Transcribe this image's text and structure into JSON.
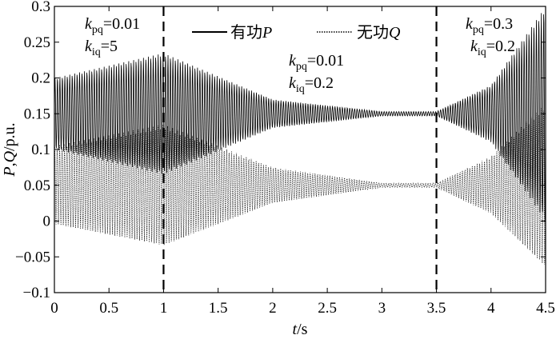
{
  "chart_data": {
    "type": "line",
    "xlabel": "t/s",
    "ylabel": "P,Q/p.u.",
    "xlim": [
      0,
      4.5
    ],
    "ylim": [
      -0.1,
      0.3
    ],
    "xticks": [
      "0",
      "0.5",
      "1",
      "1.5",
      "2",
      "2.5",
      "3",
      "3.5",
      "4",
      "4.5"
    ],
    "yticks": [
      "−0.1",
      "−0.05",
      "0",
      "0.05",
      "0.1",
      "0.15",
      "0.2",
      "0.25",
      "0.3"
    ],
    "grid": false,
    "legend_position": "top",
    "legend": [
      "有功P",
      "无功Q"
    ],
    "switch_times": [
      1.0,
      3.5
    ],
    "phases": [
      {
        "t_start": 0.0,
        "t_end": 1.0,
        "kpq": "0.01",
        "kiq": "5"
      },
      {
        "t_start": 1.0,
        "t_end": 3.5,
        "kpq": "0.01",
        "kiq": "0.2"
      },
      {
        "t_start": 3.5,
        "t_end": 4.5,
        "kpq": "0.3",
        "kiq": "0.2"
      }
    ],
    "series": [
      {
        "name": "有功P",
        "style": "solid",
        "color": "#000000",
        "center": 0.15,
        "envelope": [
          {
            "t": 0.0,
            "amplitude": 0.05
          },
          {
            "t": 1.0,
            "amplitude": 0.085
          },
          {
            "t": 2.0,
            "amplitude": 0.02
          },
          {
            "t": 3.0,
            "amplitude": 0.003
          },
          {
            "t": 3.5,
            "amplitude": 0.003
          },
          {
            "t": 4.0,
            "amplitude": 0.04
          },
          {
            "t": 4.5,
            "amplitude": 0.15
          }
        ]
      },
      {
        "name": "无功Q",
        "style": "dotted",
        "color": "#000000",
        "center": 0.05,
        "envelope": [
          {
            "t": 0.0,
            "amplitude": 0.055
          },
          {
            "t": 1.0,
            "amplitude": 0.085
          },
          {
            "t": 2.0,
            "amplitude": 0.025
          },
          {
            "t": 3.0,
            "amplitude": 0.003
          },
          {
            "t": 3.5,
            "amplitude": 0.003
          },
          {
            "t": 4.0,
            "amplitude": 0.04
          },
          {
            "t": 4.5,
            "amplitude": 0.115
          }
        ]
      }
    ]
  },
  "labels": {
    "annot1": {
      "k": "k",
      "pq_sub": "pq",
      "pq_val": "=0.01",
      "iq_sub": "iq",
      "iq_val": "=5"
    },
    "annot2": {
      "k": "k",
      "pq_sub": "pq",
      "pq_val": "=0.01",
      "iq_sub": "iq",
      "iq_val": "=0.2"
    },
    "annot3": {
      "k": "k",
      "pq_sub": "pq",
      "pq_val": "=0.3",
      "iq_sub": "iq",
      "iq_val": "=0.2"
    },
    "legend_p_text": "有功",
    "legend_p_var": "P",
    "legend_q_text": "无功",
    "legend_q_var": "Q",
    "xlabel_var": "t",
    "xlabel_unit": "/s",
    "ylabel_var1": "P",
    "ylabel_sep": ",",
    "ylabel_var2": "Q",
    "ylabel_unit": "/p.u."
  }
}
